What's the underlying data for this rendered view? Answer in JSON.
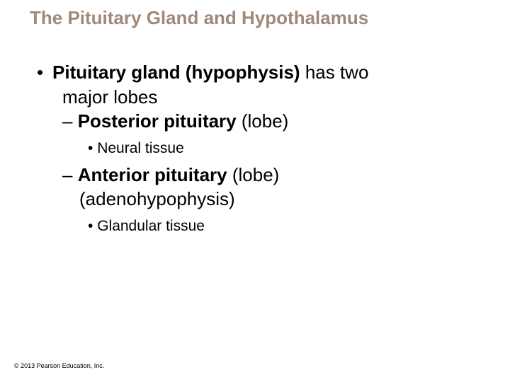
{
  "title": "The Pituitary Gland and Hypothalamus",
  "title_color": "#a0887a",
  "title_fontsize": 26,
  "body_fontsize_l1": 26,
  "body_fontsize_l3": 21,
  "text_color": "#000000",
  "background_color": "#ffffff",
  "bullets": {
    "l1_marker": "•",
    "l2_marker": "–",
    "l3_marker": "•",
    "main_bold": "Pituitary gland (hypophysis)",
    "main_rest_line1": " has two",
    "main_rest_line2": "major lobes",
    "sub1_bold": "Posterior pituitary",
    "sub1_rest": " (lobe)",
    "sub1_detail": "Neural tissue",
    "sub2_bold": "Anterior pituitary",
    "sub2_rest_line1": " (lobe)",
    "sub2_rest_line2": "(adenohypophysis)",
    "sub2_detail": "Glandular tissue"
  },
  "copyright": "© 2013 Pearson Education, Inc."
}
